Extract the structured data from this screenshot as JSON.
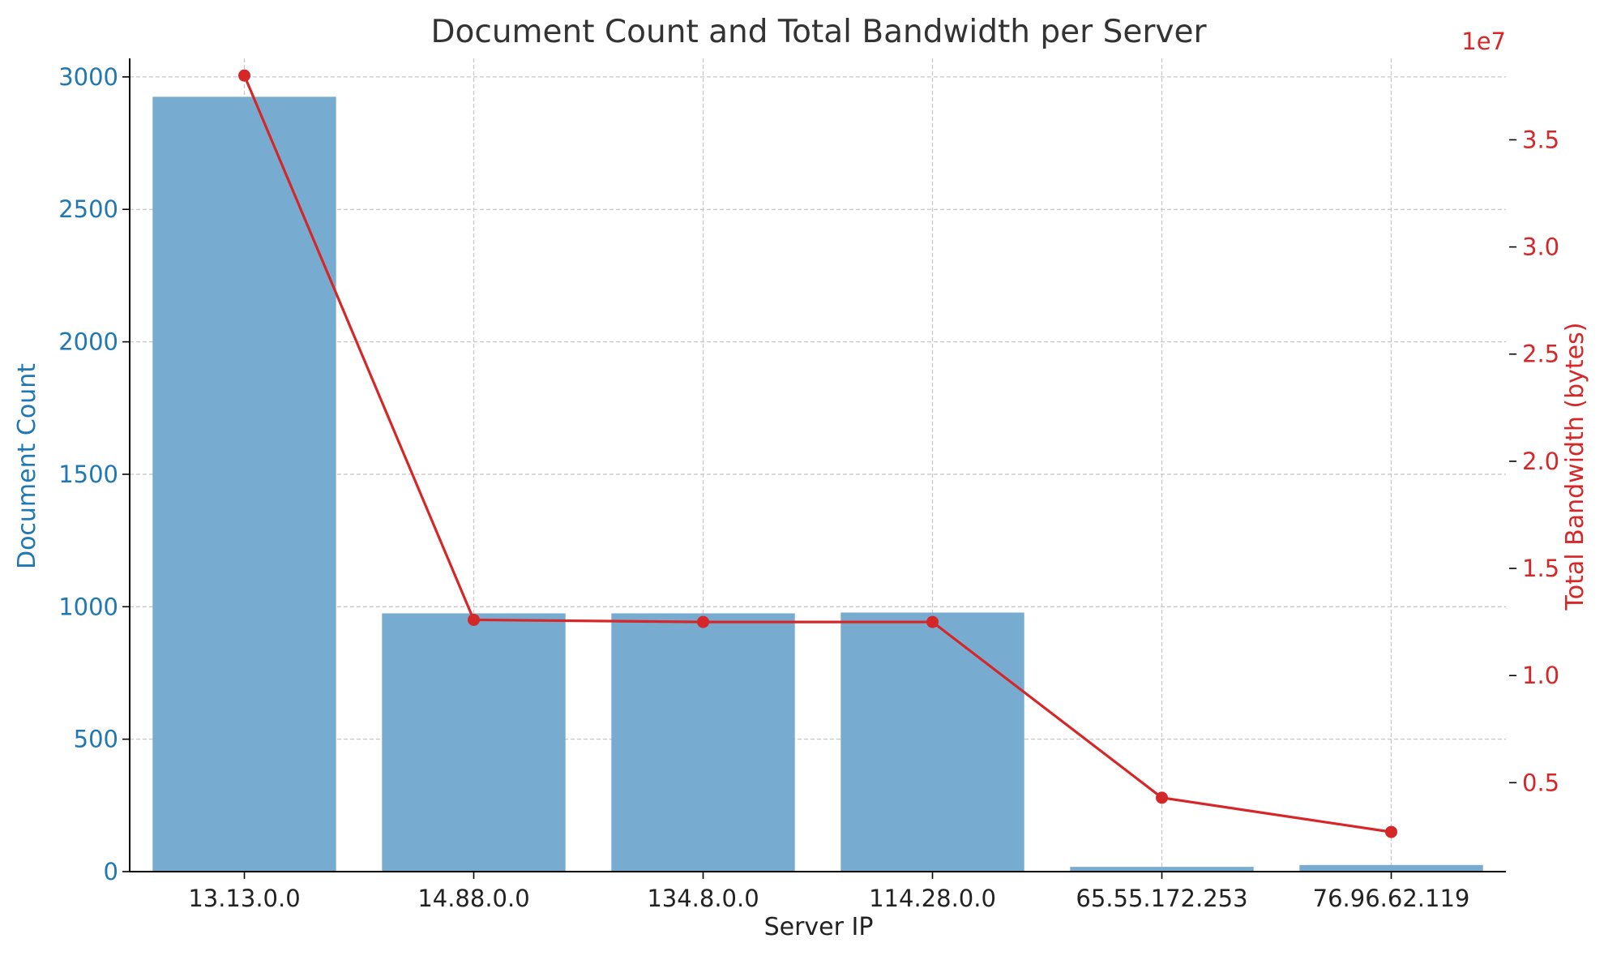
{
  "chart_data": {
    "type": "bar",
    "title": "Document Count and Total Bandwidth per Server",
    "xlabel": "Server IP",
    "categories": [
      "13.13.0.0",
      "14.88.0.0",
      "134.8.0.0",
      "114.28.0.0",
      "65.55.172.253",
      "76.96.62.119"
    ],
    "y_left": {
      "label": "Document Count",
      "ticks": [
        "0",
        "500",
        "1000",
        "1500",
        "2000",
        "2500",
        "3000"
      ],
      "range": [
        0,
        3070
      ],
      "color": "#1f77b4"
    },
    "y_right": {
      "label": "Total Bandwidth (bytes)",
      "ticks": [
        "0.5",
        "1.0",
        "1.5",
        "2.0",
        "2.5",
        "3.0",
        "3.5"
      ],
      "offset_text": "1e7",
      "range": [
        0.085,
        3.88
      ],
      "unit_multiplier": 10000000,
      "color": "#d62728"
    },
    "series": [
      {
        "kind": "bar",
        "axis": "left",
        "values": [
          2925,
          975,
          975,
          978,
          18,
          25
        ],
        "color": "#77acd0"
      },
      {
        "kind": "line",
        "axis": "right",
        "values": [
          3.8,
          1.26,
          1.25,
          1.25,
          0.43,
          0.27
        ],
        "color": "#d62728"
      }
    ],
    "grid": true,
    "colors": {
      "text": "#333333",
      "axis": "#000000",
      "grid": "#c8c8c8"
    }
  }
}
